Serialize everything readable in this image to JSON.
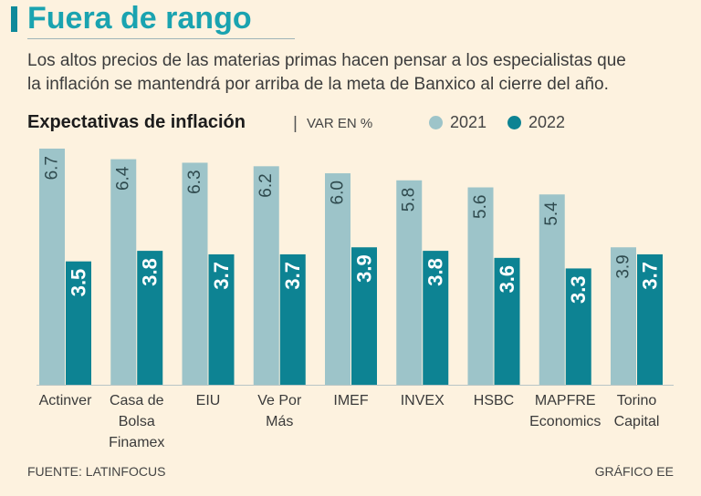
{
  "header": {
    "title": "Fuera de rango",
    "subtitle_lines": [
      "Los altos precios de las materias primas hacen pensar a los especialistas que",
      "la inflación se mantendrá por arriba de la meta de Banxico al cierre del año."
    ]
  },
  "chart_data": {
    "type": "bar",
    "title": "Expectativas de inflación",
    "separator": "|",
    "unit": "VAR EN %",
    "categories": [
      [
        "Actinver"
      ],
      [
        "Casa de",
        "Bolsa",
        "Finamex"
      ],
      [
        "EIU"
      ],
      [
        "Ve Por",
        "Más"
      ],
      [
        "IMEF"
      ],
      [
        "INVEX"
      ],
      [
        "HSBC"
      ],
      [
        "MAPFRE",
        "Economics"
      ],
      [
        "Torino",
        "Capital"
      ]
    ],
    "series": [
      {
        "name": "2021",
        "color": "#9dc4c9",
        "labels": [
          "6.7",
          "6.4",
          "6.3",
          "6.2",
          "6.0",
          "5.8",
          "5.6",
          "5.4",
          "3.9"
        ],
        "values": [
          6.7,
          6.4,
          6.3,
          6.2,
          6.0,
          5.8,
          5.6,
          5.4,
          3.9
        ]
      },
      {
        "name": "2022",
        "color": "#0d8393",
        "labels": [
          "3.5",
          "3.8",
          "3.7",
          "3.7",
          "3.9",
          "3.8",
          "3.6",
          "3.3",
          "3.7"
        ],
        "values": [
          3.5,
          3.8,
          3.7,
          3.7,
          3.9,
          3.8,
          3.6,
          3.3,
          3.7
        ]
      }
    ],
    "ylim": [
      0,
      6.7
    ],
    "legend_position": "top-right"
  },
  "footer": {
    "source": "FUENTE: LATINFOCUS",
    "credit": "GRÁFICO EE"
  }
}
